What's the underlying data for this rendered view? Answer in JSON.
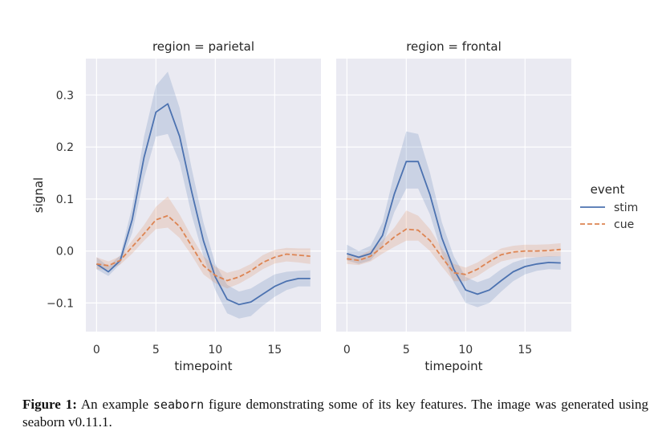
{
  "chart_data": {
    "type": "line",
    "ylabel": "signal",
    "xlabel": "timepoint",
    "x": [
      0,
      1,
      2,
      3,
      4,
      5,
      6,
      7,
      8,
      9,
      10,
      11,
      12,
      13,
      14,
      15,
      16,
      17,
      18
    ],
    "xlim": [
      -0.9,
      18.9
    ],
    "ylim": [
      -0.155,
      0.37
    ],
    "x_ticks": [
      0,
      5,
      10,
      15
    ],
    "y_ticks": [
      -0.1,
      0.0,
      0.1,
      0.2,
      0.3
    ],
    "y_tick_labels": [
      "−0.1",
      "0.0",
      "0.1",
      "0.2",
      "0.3"
    ],
    "legend": {
      "title": "event",
      "position": "right",
      "entries": [
        "stim",
        "cue"
      ]
    },
    "colors": {
      "stim": "#4c72b0",
      "cue": "#dd8452",
      "panel_bg": "#eaeaf2",
      "grid": "#ffffff"
    },
    "facets": [
      {
        "title": "region = parietal",
        "series": [
          {
            "name": "stim",
            "style": "solid",
            "values": [
              -0.025,
              -0.04,
              -0.018,
              0.06,
              0.18,
              0.267,
              0.283,
              0.22,
              0.115,
              0.02,
              -0.05,
              -0.093,
              -0.103,
              -0.098,
              -0.083,
              -0.068,
              -0.058,
              -0.053,
              -0.053
            ],
            "lower": [
              -0.035,
              -0.048,
              -0.025,
              0.035,
              0.14,
              0.22,
              0.225,
              0.17,
              0.07,
              -0.01,
              -0.075,
              -0.12,
              -0.13,
              -0.125,
              -0.105,
              -0.088,
              -0.075,
              -0.068,
              -0.068
            ],
            "upper": [
              -0.012,
              -0.03,
              -0.008,
              0.085,
              0.22,
              0.318,
              0.345,
              0.275,
              0.16,
              0.055,
              -0.025,
              -0.065,
              -0.078,
              -0.072,
              -0.058,
              -0.045,
              -0.04,
              -0.038,
              -0.037
            ]
          },
          {
            "name": "cue",
            "style": "dashed",
            "values": [
              -0.025,
              -0.028,
              -0.018,
              0.008,
              0.033,
              0.06,
              0.068,
              0.047,
              0.01,
              -0.028,
              -0.047,
              -0.057,
              -0.05,
              -0.038,
              -0.022,
              -0.012,
              -0.006,
              -0.008,
              -0.01
            ],
            "lower": [
              -0.035,
              -0.036,
              -0.026,
              -0.005,
              0.02,
              0.042,
              0.045,
              0.025,
              -0.008,
              -0.045,
              -0.062,
              -0.072,
              -0.063,
              -0.05,
              -0.035,
              -0.024,
              -0.02,
              -0.022,
              -0.025
            ],
            "upper": [
              -0.012,
              -0.02,
              -0.01,
              0.02,
              0.05,
              0.085,
              0.105,
              0.07,
              0.028,
              -0.01,
              -0.03,
              -0.042,
              -0.036,
              -0.025,
              -0.008,
              0.002,
              0.006,
              0.005,
              0.005
            ]
          }
        ]
      },
      {
        "title": "region = frontal",
        "series": [
          {
            "name": "stim",
            "style": "solid",
            "values": [
              -0.005,
              -0.012,
              -0.005,
              0.03,
              0.11,
              0.172,
              0.172,
              0.108,
              0.025,
              -0.035,
              -0.075,
              -0.083,
              -0.075,
              -0.057,
              -0.04,
              -0.03,
              -0.025,
              -0.022,
              -0.023
            ],
            "lower": [
              -0.018,
              -0.025,
              -0.018,
              0.01,
              0.075,
              0.12,
              0.12,
              0.07,
              -0.005,
              -0.06,
              -0.1,
              -0.108,
              -0.1,
              -0.078,
              -0.058,
              -0.045,
              -0.038,
              -0.035,
              -0.036
            ],
            "upper": [
              0.012,
              0.0,
              0.01,
              0.055,
              0.15,
              0.23,
              0.225,
              0.15,
              0.055,
              -0.01,
              -0.05,
              -0.06,
              -0.052,
              -0.035,
              -0.022,
              -0.015,
              -0.012,
              -0.01,
              -0.01
            ]
          },
          {
            "name": "cue",
            "style": "dashed",
            "values": [
              -0.015,
              -0.018,
              -0.01,
              0.008,
              0.027,
              0.042,
              0.04,
              0.02,
              -0.012,
              -0.042,
              -0.045,
              -0.035,
              -0.02,
              -0.007,
              -0.002,
              0.0,
              0.0,
              0.001,
              0.003
            ],
            "lower": [
              -0.025,
              -0.027,
              -0.02,
              -0.005,
              0.008,
              0.02,
              0.02,
              0.0,
              -0.03,
              -0.058,
              -0.058,
              -0.048,
              -0.033,
              -0.02,
              -0.015,
              -0.012,
              -0.012,
              -0.011,
              -0.01
            ],
            "upper": [
              -0.005,
              -0.01,
              0.002,
              0.02,
              0.045,
              0.078,
              0.068,
              0.042,
              0.005,
              -0.025,
              -0.032,
              -0.022,
              -0.008,
              0.005,
              0.01,
              0.012,
              0.012,
              0.013,
              0.015
            ]
          }
        ]
      }
    ]
  },
  "caption": {
    "label": "Figure 1:",
    "text_before": "An example ",
    "code": "seaborn",
    "text_after": " figure demonstrating some of its key features.  The image was generated using seaborn v0.11.1."
  }
}
